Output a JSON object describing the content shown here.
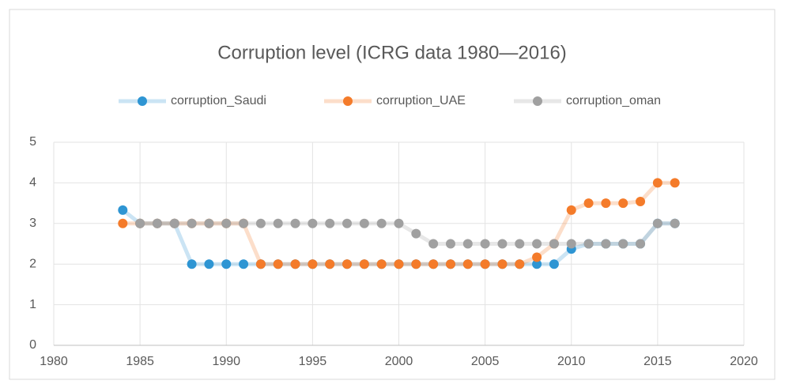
{
  "chart_data": {
    "type": "line",
    "title": "Corruption level (ICRG data 1980—2016)",
    "x": [
      1984,
      1985,
      1986,
      1987,
      1988,
      1989,
      1990,
      1991,
      1992,
      1993,
      1994,
      1995,
      1996,
      1997,
      1998,
      1999,
      2000,
      2001,
      2002,
      2003,
      2004,
      2005,
      2006,
      2007,
      2008,
      2009,
      2010,
      2011,
      2012,
      2013,
      2014,
      2015,
      2016
    ],
    "series": [
      {
        "name": "corruption_Saudi",
        "color": "#2e95d3",
        "values": [
          3.33,
          3,
          3,
          3,
          2,
          2,
          2,
          2,
          2,
          2,
          2,
          2,
          2,
          2,
          2,
          2,
          2,
          2,
          2,
          2,
          2,
          2,
          2,
          2,
          2,
          2,
          2.37,
          2.5,
          2.5,
          2.5,
          2.5,
          3,
          3
        ]
      },
      {
        "name": "corruption_UAE",
        "color": "#f47b2a",
        "values": [
          3,
          3,
          3,
          3,
          3,
          3,
          3,
          3,
          2,
          2,
          2,
          2,
          2,
          2,
          2,
          2,
          2,
          2,
          2,
          2,
          2,
          2,
          2,
          2,
          2.17,
          2.5,
          3.33,
          3.5,
          3.5,
          3.5,
          3.54,
          4,
          4
        ]
      },
      {
        "name": "corruption_oman",
        "color": "#a0a0a0",
        "values": [
          null,
          3,
          3,
          3,
          3,
          3,
          3,
          3,
          3,
          3,
          3,
          3,
          3,
          3,
          3,
          3,
          3,
          2.75,
          2.5,
          2.5,
          2.5,
          2.5,
          2.5,
          2.5,
          2.5,
          2.5,
          2.5,
          2.5,
          2.5,
          2.5,
          2.5,
          3,
          3
        ]
      }
    ],
    "xlim": [
      1980,
      2020
    ],
    "xticks": [
      1980,
      1985,
      1990,
      1995,
      2000,
      2005,
      2010,
      2015,
      2020
    ],
    "ylim": [
      0,
      5
    ],
    "yticks": [
      0,
      1,
      2,
      3,
      4,
      5
    ],
    "grid": true,
    "legend": "top"
  }
}
